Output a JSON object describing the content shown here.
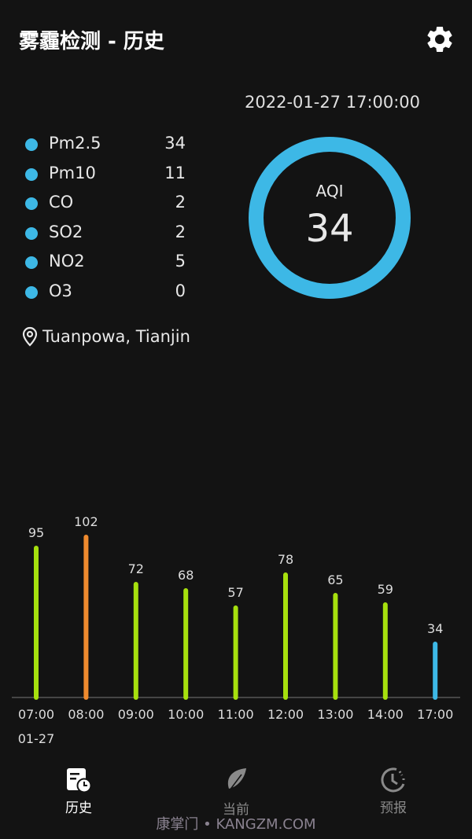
{
  "header": {
    "title": "雾霾检测 - 历史",
    "settings_icon": "gear-icon"
  },
  "timestamp": "2022-01-27 17:00:00",
  "pollutants": [
    {
      "name": "Pm2.5",
      "value": "34"
    },
    {
      "name": "Pm10",
      "value": "11"
    },
    {
      "name": "CO",
      "value": "2"
    },
    {
      "name": "SO2",
      "value": "2"
    },
    {
      "name": "NO2",
      "value": "5"
    },
    {
      "name": "O3",
      "value": "0"
    }
  ],
  "aqi": {
    "label": "AQI",
    "value": "34",
    "ring_color": "#3db8e6"
  },
  "location": "Tuanpowa, Tianjin",
  "chart_data": {
    "type": "bar",
    "categories": [
      "07:00",
      "08:00",
      "09:00",
      "10:00",
      "11:00",
      "12:00",
      "13:00",
      "14:00",
      "17:00"
    ],
    "values": [
      95,
      102,
      72,
      68,
      57,
      78,
      65,
      59,
      34
    ],
    "colors": [
      "#a6e00e",
      "#ef8a2e",
      "#a6e00e",
      "#a6e00e",
      "#a6e00e",
      "#a6e00e",
      "#a6e00e",
      "#a6e00e",
      "#3db8e6"
    ],
    "date_label": "01-27",
    "grid": false
  },
  "nav": [
    {
      "label": "历史",
      "icon": "history-doc-icon",
      "active": true
    },
    {
      "label": "当前",
      "icon": "leaf-icon",
      "active": false
    },
    {
      "label": "预报",
      "icon": "forecast-clock-icon",
      "active": false
    }
  ],
  "watermark": "康掌门 • KANGZM.COM"
}
